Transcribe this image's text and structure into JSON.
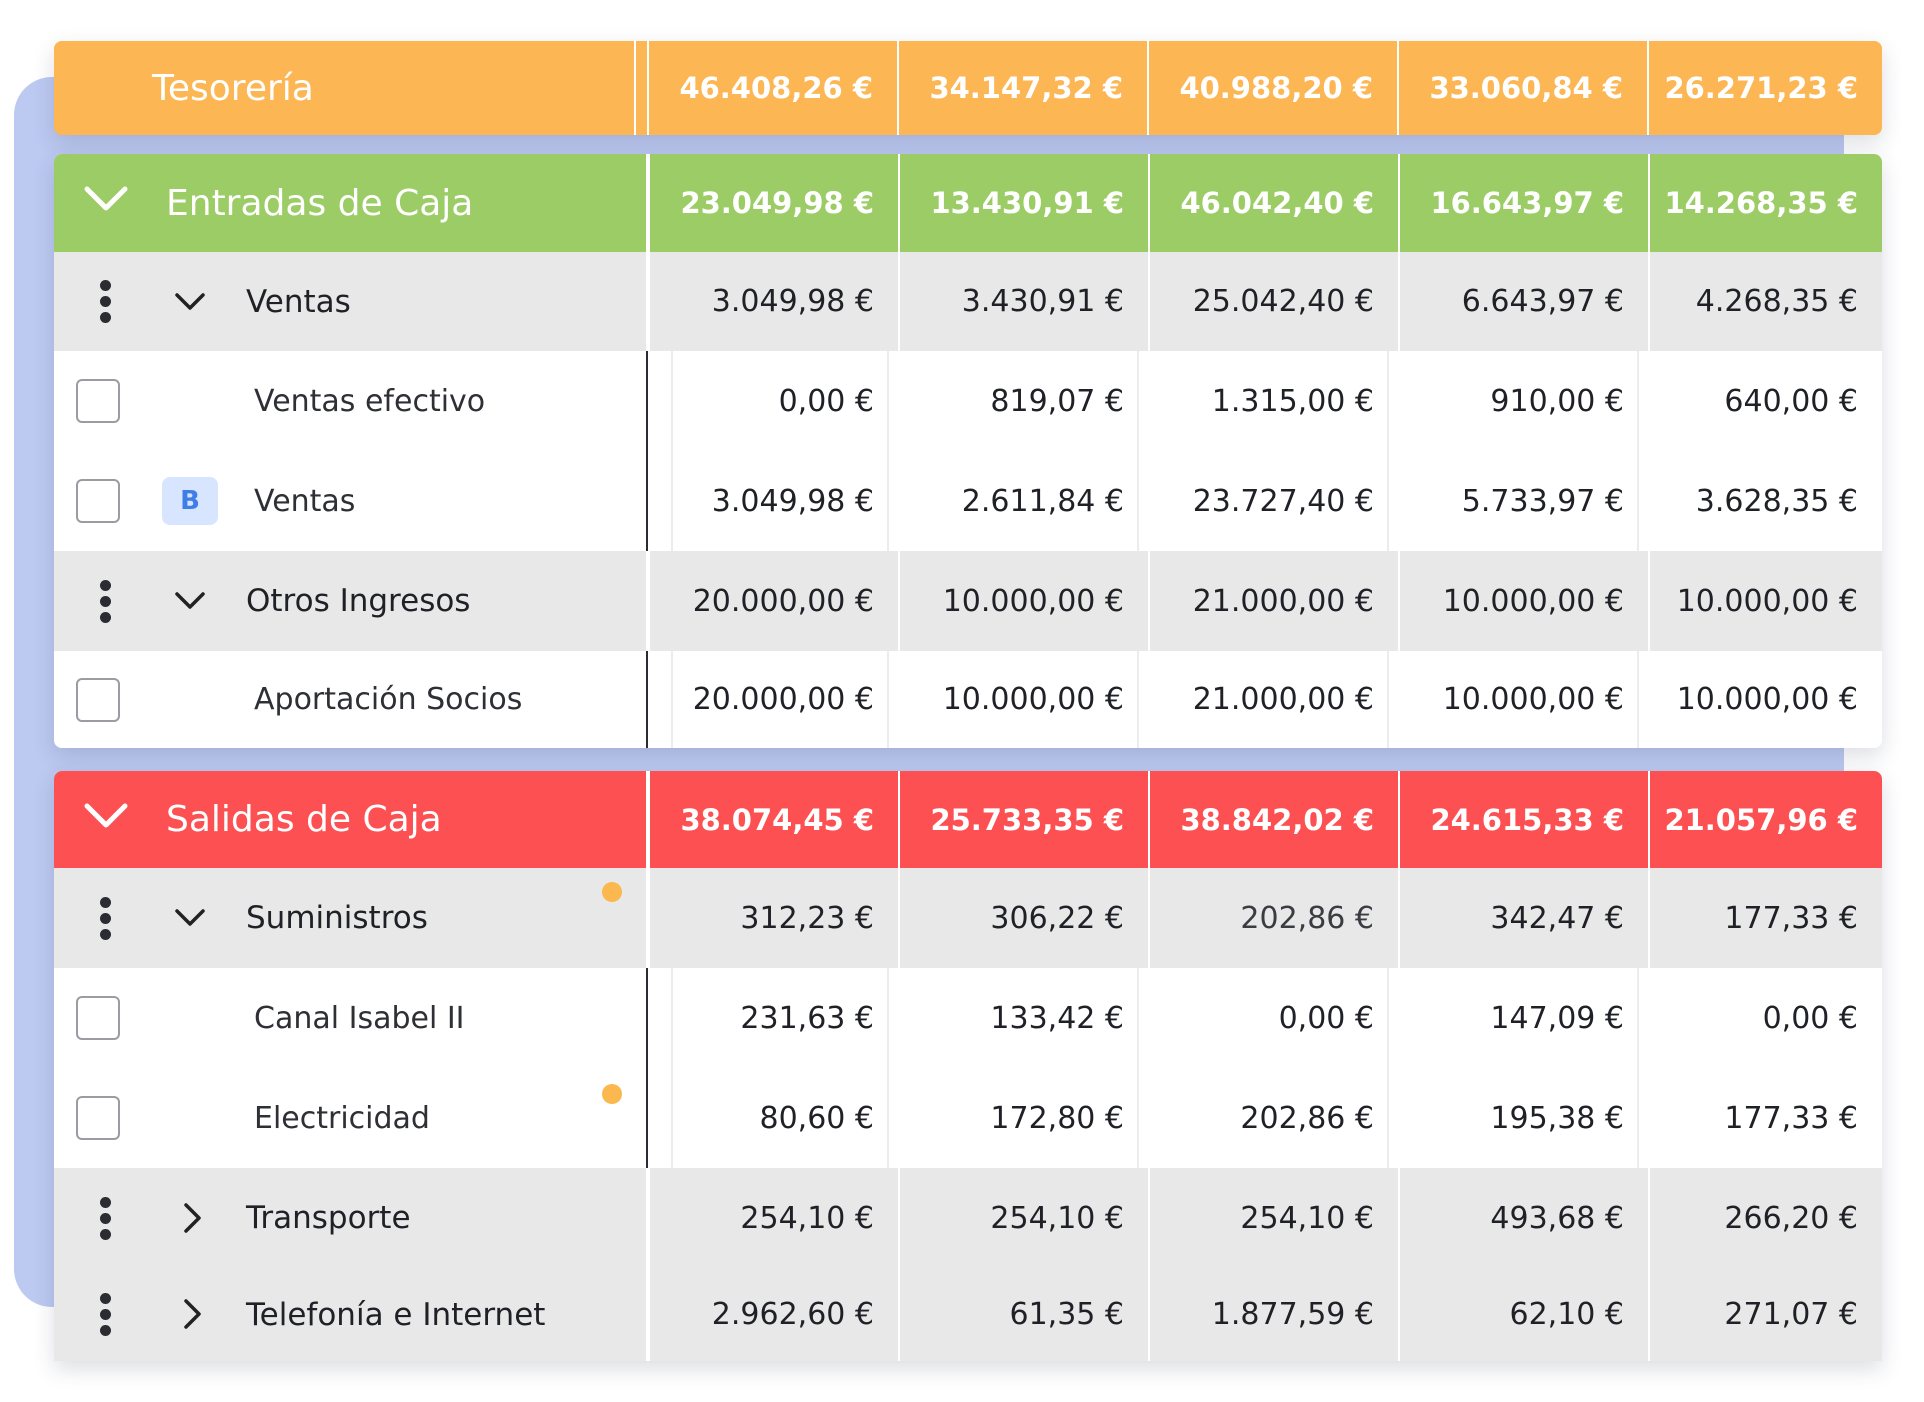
{
  "colors": {
    "tesoreria": "#fcb653",
    "entradas": "#9ccc65",
    "salidas": "#fd5052",
    "group_row": "#e8e8e8",
    "backdrop": "#bcc9f1",
    "badge": "#d8e5ff",
    "indicator": "#fab84e"
  },
  "tesoreria": {
    "label": "Tesorería",
    "values": [
      "46.408,26 €",
      "34.147,32 €",
      "40.988,20 €",
      "33.060,84 €",
      "26.271,23 €"
    ]
  },
  "entradas": {
    "label": "Entradas de Caja",
    "values": [
      "23.049,98 €",
      "13.430,91 €",
      "46.042,40 €",
      "16.643,97 €",
      "14.268,35 €"
    ],
    "ventas": {
      "label": "Ventas",
      "values": [
        "3.049,98 €",
        "3.430,91 €",
        "25.042,40 €",
        "6.643,97 €",
        "4.268,35 €"
      ],
      "items": [
        {
          "label": "Ventas efectivo",
          "values": [
            "0,00 €",
            "819,07 €",
            "1.315,00 €",
            "910,00 €",
            "640,00 €"
          ]
        },
        {
          "label": "Ventas",
          "badge": "B",
          "values": [
            "3.049,98 €",
            "2.611,84 €",
            "23.727,40 €",
            "5.733,97 €",
            "3.628,35 €"
          ]
        }
      ]
    },
    "otros": {
      "label": "Otros Ingresos",
      "values": [
        "20.000,00 €",
        "10.000,00 €",
        "21.000,00 €",
        "10.000,00 €",
        "10.000,00 €"
      ],
      "items": [
        {
          "label": "Aportación Socios",
          "values": [
            "20.000,00 €",
            "10.000,00 €",
            "21.000,00 €",
            "10.000,00 €",
            "10.000,00 €"
          ]
        }
      ]
    }
  },
  "salidas": {
    "label": "Salidas de Caja",
    "values": [
      "38.074,45 €",
      "25.733,35 €",
      "38.842,02 €",
      "24.615,33 €",
      "21.057,96 €"
    ],
    "suministros": {
      "label": "Suministros",
      "values": [
        "312,23 €",
        "306,22 €",
        "202,86 €",
        "342,47 €",
        "177,33 €"
      ],
      "items": [
        {
          "label": "Canal Isabel II",
          "values": [
            "231,63 €",
            "133,42 €",
            "0,00 €",
            "147,09 €",
            "0,00 €"
          ]
        },
        {
          "label": "Electricidad",
          "values": [
            "80,60 €",
            "172,80 €",
            "202,86 €",
            "195,38 €",
            "177,33 €"
          ]
        }
      ]
    },
    "transporte": {
      "label": "Transporte",
      "values": [
        "254,10 €",
        "254,10 €",
        "254,10 €",
        "493,68 €",
        "266,20 €"
      ]
    },
    "telefonia": {
      "label": "Telefonía e Internet",
      "values": [
        "2.962,60 €",
        "61,35 €",
        "1.877,59 €",
        "62,10 €",
        "271,07 €"
      ]
    }
  }
}
